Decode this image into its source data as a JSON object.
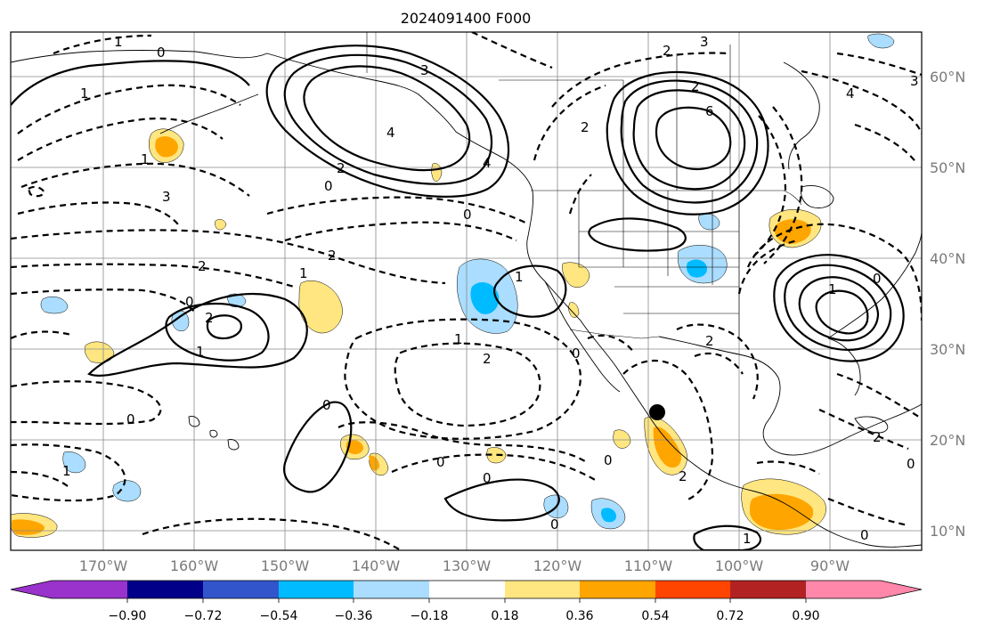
{
  "title": "2024091400 F000",
  "lon_labels": [
    "170°W",
    "160°W",
    "150°W",
    "140°W",
    "130°W",
    "120°W",
    "110°W",
    "100°W",
    "90°W"
  ],
  "lat_labels": [
    "60°N",
    "50°N",
    "40°N",
    "30°N",
    "20°N",
    "10°N"
  ],
  "colorbar": {
    "ticks": [
      "−0.90",
      "−0.72",
      "−0.54",
      "−0.36",
      "−0.18",
      "0.18",
      "0.36",
      "0.54",
      "0.72",
      "0.90"
    ],
    "colors": [
      "#9933cc",
      "#000088",
      "#3355cc",
      "#00bbff",
      "#aaddff",
      "#ffffff",
      "#ffe680",
      "#ffa500",
      "#ff4500",
      "#b22222",
      "#ff88aa"
    ]
  },
  "shading_colors": {
    "light_blue": "#aaddff",
    "cyan": "#00bbff",
    "yellow": "#ffe680",
    "orange": "#ffa500"
  },
  "contour_labels": {
    "l1": "0",
    "l2": "1",
    "l3": "1",
    "l4": "3",
    "l5": "1",
    "l6": "4",
    "l7": "3",
    "l8": "4",
    "l9": "2",
    "l10": "0",
    "l11": "0",
    "l12": "2",
    "l13": "2",
    "l14": "1",
    "l15": "0",
    "l16": "1",
    "l17": "0",
    "l18": "1",
    "l19": "2",
    "l20": "0",
    "l21": "0",
    "l22": "0",
    "l23": "1",
    "l24": "2",
    "l25": "3",
    "l26": "2",
    "l27": "6",
    "l28": "2",
    "l29": "4",
    "l30": "3",
    "l31": "0",
    "l32": "2",
    "l33": "2",
    "l34": "0",
    "l35": "1",
    "l36": "0",
    "l37": "0",
    "l38": "1",
    "l39": "2",
    "l40": "0",
    "l41": "2",
    "l42": "1",
    "l43": "0"
  },
  "marker": "storm-center"
}
